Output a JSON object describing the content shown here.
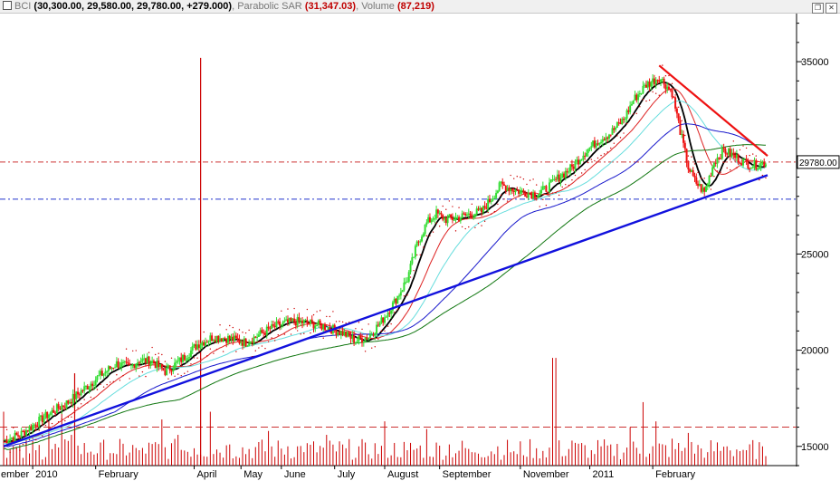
{
  "header": {
    "symbol": "BCI",
    "ohlc": "(30,300.00, 29,580.00, 29,780.00, +279.000)",
    "sar_label": "Parabolic SAR",
    "sar_value": "(31,347.03)",
    "vol_label": "Volume",
    "vol_value": "(87,219)",
    "sep": ","
  },
  "window_icons": [
    "restore-icon",
    "close-icon"
  ],
  "colors": {
    "up": "#33dd33",
    "down": "#ee1111",
    "sar": "#cc0000",
    "ma_black": "#000000",
    "ma_red": "#dd2222",
    "ma_cyan": "#66dddd",
    "ma_blue": "#1a1acc",
    "ma_green": "#117711",
    "trend": "#1111dd",
    "resist": "#ee1111",
    "volume": "#cc0000"
  },
  "chart_data": {
    "type": "candlestick",
    "price_ticks": [
      15000,
      20000,
      25000,
      35000
    ],
    "ylim": [
      14000,
      37500
    ],
    "last_price_label": "29780.00",
    "last_price": 29780,
    "ref_levels": [
      29780,
      27850
    ],
    "volume_ref_level": 16000,
    "x_labels": [
      "ember",
      "2010",
      "February",
      "April",
      "May",
      "June",
      "July",
      "August",
      "September",
      "November",
      "2011",
      "February"
    ],
    "close_path": [
      [
        0,
        15300
      ],
      [
        10,
        15600
      ],
      [
        20,
        16200
      ],
      [
        30,
        16800
      ],
      [
        40,
        17300
      ],
      [
        50,
        18000
      ],
      [
        60,
        18700
      ],
      [
        70,
        19300
      ],
      [
        78,
        19100
      ],
      [
        84,
        19500
      ],
      [
        92,
        19400
      ],
      [
        100,
        18900
      ],
      [
        107,
        19300
      ],
      [
        114,
        19800
      ],
      [
        120,
        20300
      ],
      [
        130,
        20700
      ],
      [
        140,
        20600
      ],
      [
        150,
        20400
      ],
      [
        160,
        20900
      ],
      [
        170,
        21300
      ],
      [
        180,
        21500
      ],
      [
        190,
        21400
      ],
      [
        200,
        21200
      ],
      [
        210,
        20900
      ],
      [
        218,
        20500
      ],
      [
        226,
        20700
      ],
      [
        234,
        21500
      ],
      [
        242,
        22500
      ],
      [
        250,
        23700
      ],
      [
        256,
        25500
      ],
      [
        262,
        26600
      ],
      [
        268,
        27100
      ],
      [
        274,
        26800
      ],
      [
        282,
        26900
      ],
      [
        290,
        27100
      ],
      [
        296,
        27200
      ],
      [
        302,
        27900
      ],
      [
        308,
        28600
      ],
      [
        314,
        28400
      ],
      [
        322,
        28200
      ],
      [
        330,
        28100
      ],
      [
        336,
        28400
      ],
      [
        344,
        29000
      ],
      [
        352,
        29500
      ],
      [
        360,
        30300
      ],
      [
        368,
        30900
      ],
      [
        376,
        31300
      ],
      [
        384,
        32000
      ],
      [
        390,
        33000
      ],
      [
        398,
        33800
      ],
      [
        406,
        34200
      ],
      [
        414,
        33400
      ],
      [
        420,
        31000
      ],
      [
        424,
        29500
      ],
      [
        428,
        28800
      ],
      [
        434,
        28200
      ],
      [
        440,
        29800
      ],
      [
        446,
        30400
      ],
      [
        452,
        30100
      ],
      [
        458,
        29800
      ],
      [
        464,
        29600
      ],
      [
        472,
        29780
      ]
    ],
    "volume_bars": [
      [
        0,
        16800
      ],
      [
        6,
        15000
      ],
      [
        12,
        14400
      ],
      [
        20,
        14800
      ],
      [
        28,
        16400
      ],
      [
        36,
        17200
      ],
      [
        42,
        15600
      ],
      [
        48,
        14600
      ],
      [
        60,
        15200
      ],
      [
        70,
        14600
      ],
      [
        84,
        14800
      ],
      [
        98,
        16400
      ],
      [
        108,
        15600
      ],
      [
        118,
        14900
      ],
      [
        128,
        16800
      ],
      [
        140,
        15100
      ],
      [
        150,
        14600
      ],
      [
        164,
        15800
      ],
      [
        176,
        15000
      ],
      [
        186,
        14700
      ],
      [
        200,
        15600
      ],
      [
        212,
        14900
      ],
      [
        224,
        15200
      ],
      [
        236,
        16300
      ],
      [
        250,
        14800
      ],
      [
        262,
        15900
      ],
      [
        276,
        15100
      ],
      [
        290,
        14700
      ],
      [
        306,
        15000
      ],
      [
        318,
        14600
      ],
      [
        330,
        14900
      ],
      [
        341,
        19600
      ],
      [
        352,
        15300
      ],
      [
        364,
        14800
      ],
      [
        376,
        15100
      ],
      [
        388,
        16000
      ],
      [
        396,
        17300
      ],
      [
        404,
        16300
      ],
      [
        414,
        15400
      ],
      [
        424,
        15700
      ],
      [
        436,
        14700
      ],
      [
        448,
        15000
      ],
      [
        460,
        14800
      ],
      [
        470,
        15000
      ]
    ],
    "spikes": [
      [
        122,
        35200
      ],
      [
        44,
        18800
      ]
    ]
  }
}
